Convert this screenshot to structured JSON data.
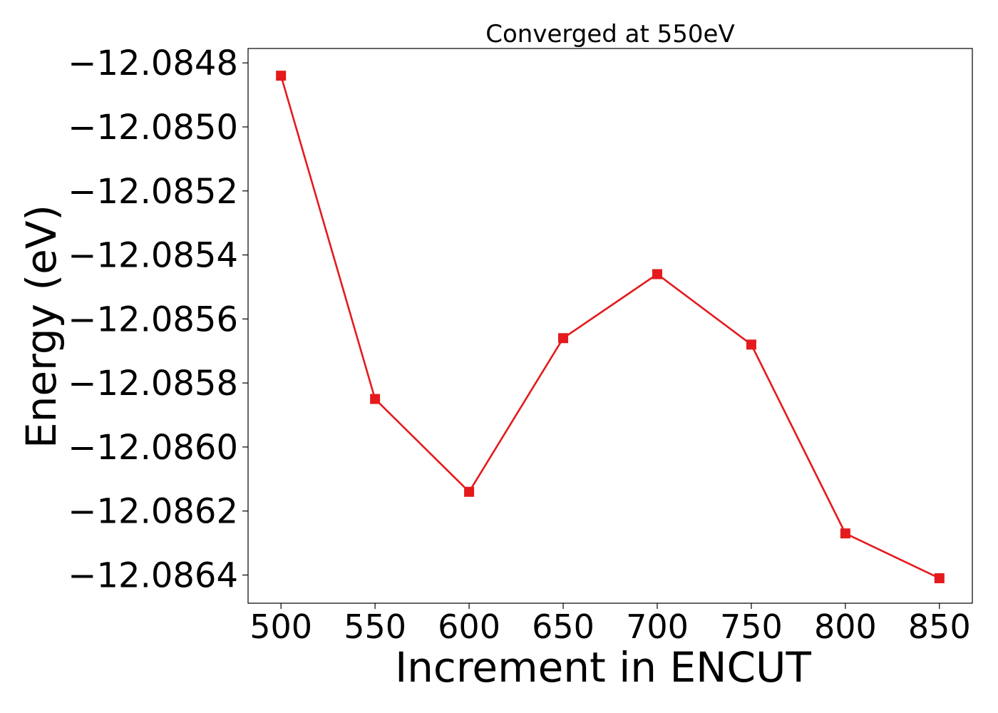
{
  "chart_data": {
    "type": "line",
    "title": "Converged at 550eV",
    "xlabel": "Increment in ENCUT",
    "ylabel": "Energy (eV)",
    "x": [
      500,
      550,
      600,
      650,
      700,
      750,
      800,
      850
    ],
    "series": [
      {
        "values": [
          -12.08484,
          -12.08585,
          -12.08614,
          -12.08566,
          -12.08546,
          -12.08568,
          -12.08627,
          -12.08641
        ],
        "color": "#e41a1c",
        "marker": "square"
      }
    ],
    "xticks": [
      "500",
      "550",
      "600",
      "650",
      "700",
      "750",
      "800",
      "850"
    ],
    "yticks": [
      {
        "value": -12.0848,
        "label": "−12.0848"
      },
      {
        "value": -12.085,
        "label": "−12.0850"
      },
      {
        "value": -12.0852,
        "label": "−12.0852"
      },
      {
        "value": -12.0854,
        "label": "−12.0854"
      },
      {
        "value": -12.0856,
        "label": "−12.0856"
      },
      {
        "value": -12.0858,
        "label": "−12.0858"
      },
      {
        "value": -12.086,
        "label": "−12.0860"
      },
      {
        "value": -12.0862,
        "label": "−12.0862"
      },
      {
        "value": -12.0864,
        "label": "−12.0864"
      }
    ],
    "xlim": [
      482.5,
      867.5
    ],
    "ylim": [
      -12.086488,
      -12.084755
    ],
    "grid": false,
    "legend": false
  }
}
